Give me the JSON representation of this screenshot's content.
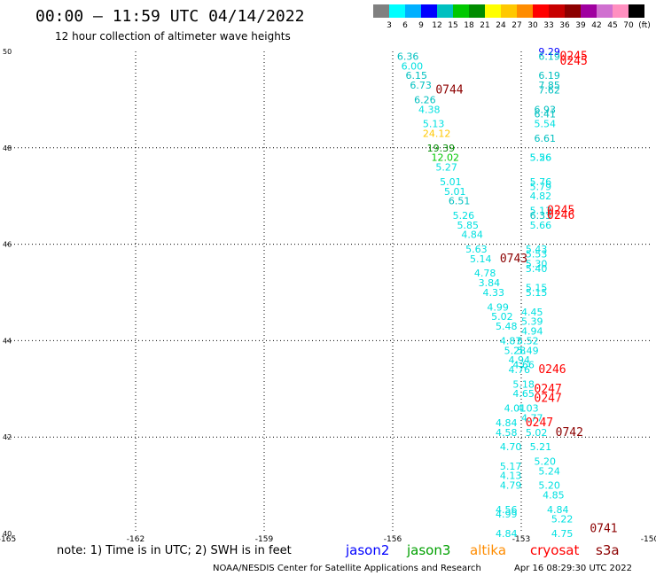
{
  "title": "00:00 – 11:59 UTC 04/14/2022",
  "subtitle": "12 hour collection of altimeter wave heights",
  "colorbar": {
    "colors": [
      "#808080",
      "#00ffff",
      "#00b0ff",
      "#0000ff",
      "#00c0c0",
      "#00c800",
      "#008c00",
      "#ffff00",
      "#ffc800",
      "#ff8c00",
      "#ff0000",
      "#c80000",
      "#8c0000",
      "#a000a0",
      "#d070d0",
      "#ff90c0",
      "#000000"
    ],
    "ticks": [
      "3",
      "6",
      "9",
      "12",
      "15",
      "18",
      "21",
      "24",
      "27",
      "30",
      "33",
      "36",
      "39",
      "42",
      "45",
      "70",
      "(ft)"
    ]
  },
  "note": "note: 1) Time is in UTC; 2) SWH is in feet",
  "legend": [
    {
      "name": "jason2",
      "color": "#0000ff"
    },
    {
      "name": "jason3",
      "color": "#00a000"
    },
    {
      "name": "altika",
      "color": "#ff8c00"
    },
    {
      "name": "cryosat",
      "color": "#ff0000"
    },
    {
      "name": "s3a",
      "color": "#8c0000"
    }
  ],
  "credit": "NOAA/NESDIS Center for Satellite Applications and Research",
  "stamp": "Apr 16 08:29:30 UTC 2022",
  "chart_data": {
    "type": "scatter",
    "xlim": [
      -165,
      -150
    ],
    "ylim": [
      40,
      50
    ],
    "xticks": [
      "-165",
      "-162",
      "-159",
      "-156",
      "-153",
      "-150"
    ],
    "yticks": [
      "40",
      "42",
      "44",
      "46",
      "48",
      "50"
    ],
    "grid": true,
    "points": [
      {
        "lon": -155.9,
        "lat": 49.9,
        "label": "6.36",
        "color": "#00c0c0"
      },
      {
        "lon": -155.8,
        "lat": 49.7,
        "label": "6.00",
        "color": "#00e0e0"
      },
      {
        "lon": -155.7,
        "lat": 49.5,
        "label": "6.15",
        "color": "#00c0c0"
      },
      {
        "lon": -155.6,
        "lat": 49.3,
        "label": "6.73",
        "color": "#00c0c0"
      },
      {
        "lon": -155.5,
        "lat": 49.0,
        "label": "6.26",
        "color": "#00c0c0"
      },
      {
        "lon": -155.4,
        "lat": 48.8,
        "label": "4.38",
        "color": "#00e0e0"
      },
      {
        "lon": -155.3,
        "lat": 48.5,
        "label": "5.13",
        "color": "#00e0e0"
      },
      {
        "lon": -155.3,
        "lat": 48.3,
        "label": "24.12",
        "color": "#ffc800"
      },
      {
        "lon": -155.2,
        "lat": 48.0,
        "label": "19.39",
        "color": "#008c00"
      },
      {
        "lon": -155.1,
        "lat": 47.8,
        "label": "12.02",
        "color": "#00c800"
      },
      {
        "lon": -155.0,
        "lat": 47.6,
        "label": "5.27",
        "color": "#00e0e0"
      },
      {
        "lon": -154.9,
        "lat": 47.3,
        "label": "5.01",
        "color": "#00e0e0"
      },
      {
        "lon": -154.8,
        "lat": 47.1,
        "label": "5.01",
        "color": "#00e0e0"
      },
      {
        "lon": -154.7,
        "lat": 46.9,
        "label": "6.51",
        "color": "#00c0c0"
      },
      {
        "lon": -154.6,
        "lat": 46.6,
        "label": "5.26",
        "color": "#00e0e0"
      },
      {
        "lon": -154.5,
        "lat": 46.4,
        "label": "5.85",
        "color": "#00e0e0"
      },
      {
        "lon": -154.4,
        "lat": 46.2,
        "label": "4.84",
        "color": "#00e0e0"
      },
      {
        "lon": -154.3,
        "lat": 45.9,
        "label": "5.63",
        "color": "#00e0e0"
      },
      {
        "lon": -154.2,
        "lat": 45.7,
        "label": "5.14",
        "color": "#00e0e0"
      },
      {
        "lon": -154.1,
        "lat": 45.4,
        "label": "4.78",
        "color": "#00e0e0"
      },
      {
        "lon": -154.0,
        "lat": 45.2,
        "label": "3.84",
        "color": "#00e0e0"
      },
      {
        "lon": -153.9,
        "lat": 45.0,
        "label": "4.33",
        "color": "#00e0e0"
      },
      {
        "lon": -153.8,
        "lat": 44.7,
        "label": "4.99",
        "color": "#00e0e0"
      },
      {
        "lon": -153.7,
        "lat": 44.5,
        "label": "5.02",
        "color": "#00e0e0"
      },
      {
        "lon": -153.6,
        "lat": 44.3,
        "label": "5.48",
        "color": "#00e0e0"
      },
      {
        "lon": -153.5,
        "lat": 44.0,
        "label": "4.87",
        "color": "#00e0e0"
      },
      {
        "lon": -153.4,
        "lat": 43.8,
        "label": "5.28",
        "color": "#00e0e0"
      },
      {
        "lon": -153.3,
        "lat": 43.6,
        "label": "4.94",
        "color": "#00e0e0"
      },
      {
        "lon": -153.3,
        "lat": 43.4,
        "label": "4.76",
        "color": "#00e0e0"
      },
      {
        "lon": -153.2,
        "lat": 43.1,
        "label": "5.18",
        "color": "#00e0e0"
      },
      {
        "lon": -153.2,
        "lat": 42.9,
        "label": "4.65",
        "color": "#00e0e0"
      },
      {
        "lon": -153.1,
        "lat": 42.6,
        "label": "4.03",
        "color": "#00e0e0"
      },
      {
        "lon": -153.4,
        "lat": 42.6,
        "label": "4.01",
        "color": "#00e0e0"
      },
      {
        "lon": -153.0,
        "lat": 42.4,
        "label": "4.77",
        "color": "#00e0e0"
      },
      {
        "lon": -153.6,
        "lat": 42.3,
        "label": "4.84",
        "color": "#00e0e0"
      },
      {
        "lon": -153.6,
        "lat": 42.1,
        "label": "4.58",
        "color": "#00e0e0"
      },
      {
        "lon": -152.9,
        "lat": 42.1,
        "label": "5.02",
        "color": "#00e0e0"
      },
      {
        "lon": -153.5,
        "lat": 41.8,
        "label": "4.70",
        "color": "#00e0e0"
      },
      {
        "lon": -152.8,
        "lat": 41.8,
        "label": "5.21",
        "color": "#00e0e0"
      },
      {
        "lon": -152.7,
        "lat": 41.5,
        "label": "5.20",
        "color": "#00e0e0"
      },
      {
        "lon": -153.5,
        "lat": 41.4,
        "label": "5.17",
        "color": "#00e0e0"
      },
      {
        "lon": -152.6,
        "lat": 41.3,
        "label": "5.24",
        "color": "#00e0e0"
      },
      {
        "lon": -153.5,
        "lat": 41.2,
        "label": "4.13",
        "color": "#00e0e0"
      },
      {
        "lon": -153.5,
        "lat": 41.0,
        "label": "4.79",
        "color": "#00e0e0"
      },
      {
        "lon": -152.6,
        "lat": 41.0,
        "label": "5.20",
        "color": "#00e0e0"
      },
      {
        "lon": -152.5,
        "lat": 40.8,
        "label": "4.85",
        "color": "#00e0e0"
      },
      {
        "lon": -152.4,
        "lat": 40.5,
        "label": "4.84",
        "color": "#00e0e0"
      },
      {
        "lon": -153.6,
        "lat": 40.5,
        "label": "4.56",
        "color": "#00e0e0"
      },
      {
        "lon": -153.6,
        "lat": 40.4,
        "label": "4.99",
        "color": "#00e0e0"
      },
      {
        "lon": -152.3,
        "lat": 40.3,
        "label": "5.22",
        "color": "#00e0e0"
      },
      {
        "lon": -152.3,
        "lat": 40.0,
        "label": "4.75",
        "color": "#00e0e0"
      },
      {
        "lon": -153.6,
        "lat": 40.0,
        "label": "4.84",
        "color": "#00e0e0"
      },
      {
        "lon": -152.6,
        "lat": 50.0,
        "label": "9.29",
        "color": "#0000ff"
      },
      {
        "lon": -152.6,
        "lat": 49.9,
        "label": "6.19",
        "color": "#00c0c0"
      },
      {
        "lon": -152.6,
        "lat": 49.5,
        "label": "6.19",
        "color": "#00c0c0"
      },
      {
        "lon": -152.6,
        "lat": 49.3,
        "label": "7.85",
        "color": "#00c0c0"
      },
      {
        "lon": -152.6,
        "lat": 49.2,
        "label": "7.62",
        "color": "#00c0c0"
      },
      {
        "lon": -152.7,
        "lat": 48.8,
        "label": "6.93",
        "color": "#00c0c0"
      },
      {
        "lon": -152.7,
        "lat": 48.7,
        "label": "6.41",
        "color": "#00c0c0"
      },
      {
        "lon": -152.7,
        "lat": 48.5,
        "label": "5.54",
        "color": "#00e0e0"
      },
      {
        "lon": -152.7,
        "lat": 48.2,
        "label": "6.61",
        "color": "#00c0c0"
      },
      {
        "lon": -152.8,
        "lat": 47.8,
        "label": "5.26",
        "color": "#00e0e0"
      },
      {
        "lon": -152.8,
        "lat": 47.8,
        "label": "5.56",
        "color": "#00e0e0"
      },
      {
        "lon": -152.8,
        "lat": 47.3,
        "label": "5.76",
        "color": "#00e0e0"
      },
      {
        "lon": -152.8,
        "lat": 47.2,
        "label": "5.79",
        "color": "#00e0e0"
      },
      {
        "lon": -152.8,
        "lat": 47.0,
        "label": "4.82",
        "color": "#00e0e0"
      },
      {
        "lon": -152.8,
        "lat": 46.7,
        "label": "5.13",
        "color": "#00e0e0"
      },
      {
        "lon": -152.8,
        "lat": 46.6,
        "label": "6.33",
        "color": "#00c0c0"
      },
      {
        "lon": -152.8,
        "lat": 46.4,
        "label": "5.66",
        "color": "#00e0e0"
      },
      {
        "lon": -152.9,
        "lat": 45.9,
        "label": "5.43",
        "color": "#00e0e0"
      },
      {
        "lon": -152.9,
        "lat": 45.8,
        "label": "5.53",
        "color": "#00e0e0"
      },
      {
        "lon": -152.9,
        "lat": 45.6,
        "label": "5.30",
        "color": "#00e0e0"
      },
      {
        "lon": -152.9,
        "lat": 45.5,
        "label": "5.40",
        "color": "#00e0e0"
      },
      {
        "lon": -152.9,
        "lat": 45.1,
        "label": "5.15",
        "color": "#00e0e0"
      },
      {
        "lon": -152.9,
        "lat": 45.0,
        "label": "5.15",
        "color": "#00e0e0"
      },
      {
        "lon": -153.0,
        "lat": 44.6,
        "label": "4.45",
        "color": "#00e0e0"
      },
      {
        "lon": -153.0,
        "lat": 44.4,
        "label": "5.39",
        "color": "#00e0e0"
      },
      {
        "lon": -153.0,
        "lat": 44.2,
        "label": "4.94",
        "color": "#00e0e0"
      },
      {
        "lon": -153.1,
        "lat": 44.0,
        "label": "5.52",
        "color": "#00e0e0"
      },
      {
        "lon": -153.1,
        "lat": 43.8,
        "label": "5.49",
        "color": "#00e0e0"
      },
      {
        "lon": -153.2,
        "lat": 43.5,
        "label": "4.66",
        "color": "#00e0e0"
      },
      {
        "lon": -152.1,
        "lat": 49.9,
        "label": "0245",
        "color": "#ff0000"
      },
      {
        "lon": -152.1,
        "lat": 49.8,
        "label": "0245",
        "color": "#ff0000"
      },
      {
        "lon": -152.4,
        "lat": 46.7,
        "label": "0245",
        "color": "#ff0000"
      },
      {
        "lon": -152.4,
        "lat": 46.6,
        "label": "0246",
        "color": "#ff0000"
      },
      {
        "lon": -152.6,
        "lat": 43.4,
        "label": "0246",
        "color": "#ff0000"
      },
      {
        "lon": -152.7,
        "lat": 43.0,
        "label": "0247",
        "color": "#ff0000"
      },
      {
        "lon": -152.7,
        "lat": 42.8,
        "label": "0247",
        "color": "#ff0000"
      },
      {
        "lon": -152.9,
        "lat": 42.3,
        "label": "0247",
        "color": "#ff0000"
      },
      {
        "lon": -155.0,
        "lat": 49.2,
        "label": "0744",
        "color": "#8c0000"
      },
      {
        "lon": -153.5,
        "lat": 45.7,
        "label": "0743",
        "color": "#8c0000"
      },
      {
        "lon": -152.2,
        "lat": 42.1,
        "label": "0742",
        "color": "#8c0000"
      },
      {
        "lon": -151.4,
        "lat": 40.1,
        "label": "0741",
        "color": "#8c0000"
      }
    ]
  }
}
